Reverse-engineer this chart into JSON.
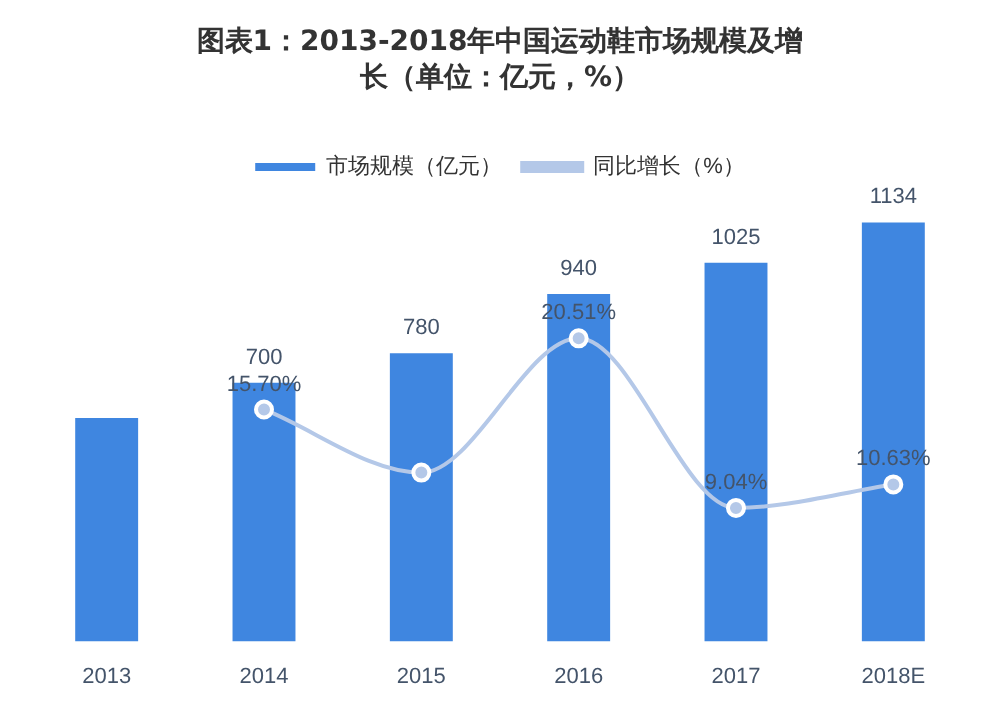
{
  "chart_data": {
    "type": "bar",
    "title": "图表1：2013-2018年中国运动鞋市场规模及增长（单位：亿元，%）",
    "categories": [
      "2013",
      "2014",
      "2015",
      "2016",
      "2017",
      "2018E"
    ],
    "series": [
      {
        "name": "市场规模（亿元）",
        "color": "#3f86e0",
        "values": [
          605,
          700,
          780,
          940,
          1025,
          1134
        ],
        "value_labels": [
          null,
          "700",
          "780",
          "940",
          "1025",
          "1134"
        ]
      },
      {
        "name": "同比增长（%）",
        "type": "line",
        "axis": "y2",
        "color": "#b4c8e8",
        "values": [
          null,
          15.7,
          11.43,
          20.51,
          9.04,
          10.63
        ],
        "value_labels": [
          null,
          "15.70%",
          null,
          "20.51%",
          "9.04%",
          "10.63%"
        ]
      }
    ],
    "tick_labels": "x",
    "grid": false,
    "legend": "top",
    "marker": "circle"
  }
}
